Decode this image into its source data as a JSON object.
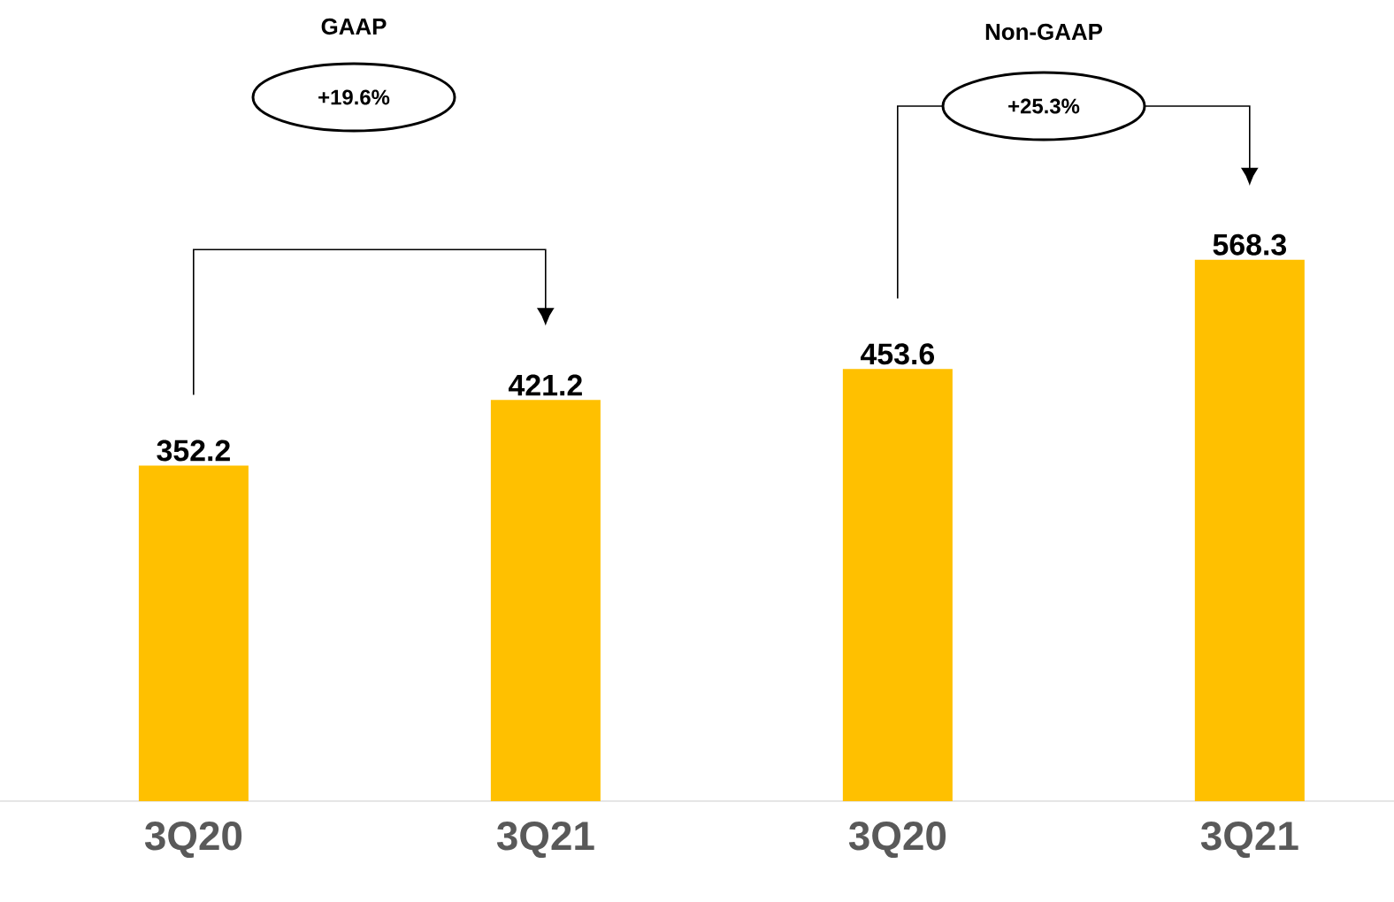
{
  "chart_data": {
    "type": "bar",
    "categories": [
      "3Q20",
      "3Q21",
      "3Q20",
      "3Q21"
    ],
    "values": [
      352.2,
      421.2,
      453.6,
      568.3
    ],
    "color": "#ffc000",
    "data_labels": true,
    "annotations": [
      "GAAP",
      "+19.6%",
      "Non-GAAP",
      "+25.3%"
    ]
  }
}
